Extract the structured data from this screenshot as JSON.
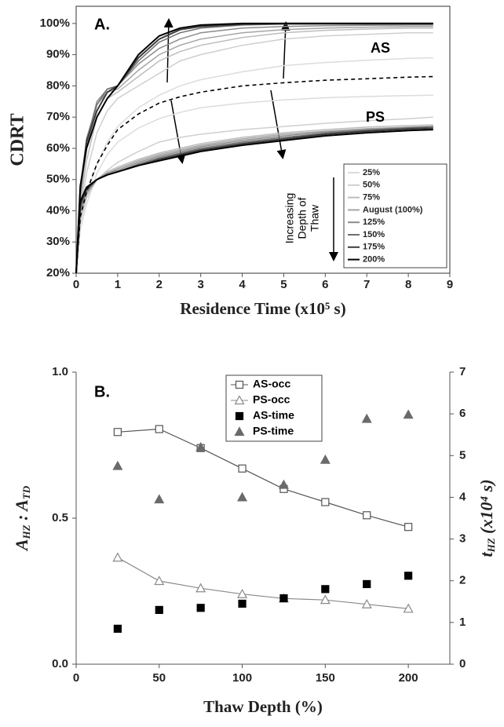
{
  "chart_data": [
    {
      "type": "line",
      "panel_label": "A.",
      "annotations": [
        "AS",
        "PS"
      ],
      "legend_title": [
        "Increasing",
        "Depth of",
        "Thaw"
      ],
      "xlabel": "Residence Time (x10⁵ s)",
      "ylabel": "CDRT",
      "x": [
        0,
        0.1,
        0.25,
        0.5,
        0.75,
        1,
        1.5,
        2,
        2.5,
        3,
        4,
        5,
        6,
        7,
        8,
        8.6
      ],
      "xlim": [
        0,
        9
      ],
      "xticks": [
        0,
        1,
        2,
        3,
        4,
        5,
        6,
        7,
        8,
        9
      ],
      "ylim": [
        20,
        105.5
      ],
      "yticks": [
        {
          "value": 20,
          "label": "20%"
        },
        {
          "value": 30,
          "label": "30%"
        },
        {
          "value": 40,
          "label": "40%"
        },
        {
          "value": 50,
          "label": "50%"
        },
        {
          "value": 60,
          "label": "60%"
        },
        {
          "value": 70,
          "label": "70%"
        },
        {
          "value": 80,
          "label": "80%"
        },
        {
          "value": 90,
          "label": "90%"
        },
        {
          "value": 100,
          "label": "100%"
        }
      ],
      "series": [
        {
          "name": "25%",
          "color": "#dcdcdc",
          "values": [
            20,
            36,
            45,
            55,
            62,
            67,
            73,
            77,
            80,
            82,
            84.5,
            86.5,
            87.5,
            88.2,
            88.8,
            89
          ],
          "ps_values": [
            20,
            34,
            42,
            52,
            58,
            62,
            66.5,
            69.5,
            71.5,
            73,
            74.5,
            75.5,
            76.2,
            76.6,
            76.9,
            77
          ]
        },
        {
          "name": "50%",
          "color": "#cfcfcf",
          "values": [
            20,
            40,
            52,
            65,
            72,
            76,
            80,
            84,
            88,
            90,
            93,
            95,
            96,
            96.5,
            97,
            97
          ],
          "ps_values": [
            20,
            36,
            44,
            50,
            53,
            55.5,
            59,
            62,
            63.5,
            64.5,
            66,
            67,
            68,
            68.8,
            69.5,
            70
          ]
        },
        {
          "name": "75%",
          "color": "#bdbdbd",
          "values": [
            20,
            42,
            56,
            70,
            76,
            78,
            83,
            88,
            91,
            93,
            95.5,
            97,
            97.8,
            98.2,
            98.5,
            98.5
          ],
          "ps_values": [
            20,
            38,
            45,
            50,
            52.5,
            54,
            56.5,
            58.5,
            60,
            61.5,
            63.5,
            65,
            66,
            66.8,
            67.3,
            67.5
          ]
        },
        {
          "name": "August (100%)",
          "color": "#a5a5a5",
          "values": [
            20,
            44,
            60,
            74,
            78,
            79,
            85,
            90,
            93,
            95,
            97,
            98,
            98.5,
            98.8,
            99,
            99
          ],
          "ps_values": [
            20,
            39,
            45.5,
            50,
            52,
            53.5,
            56,
            58,
            59.5,
            61,
            63,
            64.5,
            65.5,
            66.3,
            66.8,
            67
          ]
        },
        {
          "name": "125%",
          "color": "#8c8c8c",
          "values": [
            20,
            45,
            62,
            75,
            79,
            80,
            87,
            92,
            95,
            97,
            98.5,
            99,
            99.3,
            99.4,
            99.5,
            99.5
          ],
          "ps_values": [
            20,
            40,
            46,
            50,
            52,
            53,
            55.5,
            57.5,
            59,
            60.5,
            62.5,
            64,
            65.2,
            66,
            66.7,
            67
          ]
        },
        {
          "name": "150%",
          "color": "#6e6e6e",
          "values": [
            20,
            46,
            63,
            74,
            79,
            80,
            88,
            94,
            97,
            98.5,
            99.5,
            99.8,
            99.8,
            99.8,
            99.8,
            99.8
          ],
          "ps_values": [
            20,
            41,
            46.5,
            50,
            51.5,
            52.5,
            55,
            57,
            58.5,
            60,
            62,
            63.5,
            64.8,
            65.8,
            66.5,
            67
          ]
        },
        {
          "name": "175%",
          "color": "#3c3c3c",
          "values": [
            20,
            47,
            62,
            72,
            78,
            80,
            89,
            95,
            98,
            99,
            99.8,
            100,
            100,
            100,
            100,
            100
          ],
          "ps_values": [
            20,
            42,
            47,
            50,
            51.5,
            52.5,
            54.5,
            56.5,
            58,
            59.5,
            61.5,
            63,
            64.5,
            65.5,
            66.2,
            66.5
          ]
        },
        {
          "name": "200%",
          "color": "#000000",
          "values": [
            20,
            48,
            60,
            70,
            76,
            80,
            90,
            96,
            98.5,
            99.5,
            100,
            100,
            100,
            100,
            100,
            100
          ],
          "ps_values": [
            20,
            43,
            47.5,
            50,
            51.5,
            52.5,
            54.5,
            56,
            57.5,
            59,
            61,
            62.5,
            64,
            65,
            65.7,
            66
          ]
        }
      ],
      "dashed_values": [
        20,
        38,
        46,
        55,
        61,
        66,
        71,
        74.5,
        76.5,
        78,
        80,
        81,
        81.8,
        82.3,
        82.8,
        83
      ]
    },
    {
      "type": "scatter",
      "panel_label": "B.",
      "xlabel": "Thaw Depth (%)",
      "ylabel": [
        "A",
        "HZ",
        " : A",
        "TD"
      ],
      "y2label": [
        "t",
        "HZ",
        " (x10⁴ s)"
      ],
      "x": [
        25,
        50,
        75,
        100,
        125,
        150,
        175,
        200
      ],
      "xlim": [
        0,
        225
      ],
      "xticks": [
        0,
        50,
        100,
        150,
        200
      ],
      "ylim": [
        0,
        1
      ],
      "yticks": [
        {
          "value": 0,
          "label": "0.0"
        },
        {
          "value": 0.5,
          "label": "0.5"
        },
        {
          "value": 1,
          "label": "1.0"
        }
      ],
      "y2lim": [
        0,
        7
      ],
      "y2ticks": [
        0,
        1,
        2,
        3,
        4,
        5,
        6,
        7
      ],
      "series": [
        {
          "name": "AS-occ",
          "color": "#555555",
          "marker": "square",
          "filled": false,
          "line": true,
          "values": [
            0.795,
            0.805,
            0.74,
            0.67,
            0.6,
            0.555,
            0.51,
            0.47
          ]
        },
        {
          "name": "PS-occ",
          "color": "#8a8a8a",
          "marker": "triangle",
          "filled": false,
          "line": true,
          "values": [
            0.365,
            0.285,
            0.26,
            0.24,
            0.225,
            0.22,
            0.205,
            0.19
          ]
        },
        {
          "name": "AS-time",
          "color": "#000000",
          "marker": "square",
          "filled": true,
          "line": false,
          "axis": "y2",
          "values": [
            0.85,
            1.3,
            1.35,
            1.45,
            1.58,
            1.8,
            1.92,
            2.12
          ]
        },
        {
          "name": "PS-time",
          "color": "#6a6a6a",
          "marker": "triangle",
          "filled": true,
          "line": false,
          "axis": "y2",
          "values": [
            4.75,
            3.95,
            5.2,
            4.0,
            4.3,
            4.9,
            5.88,
            5.98
          ]
        }
      ]
    }
  ]
}
